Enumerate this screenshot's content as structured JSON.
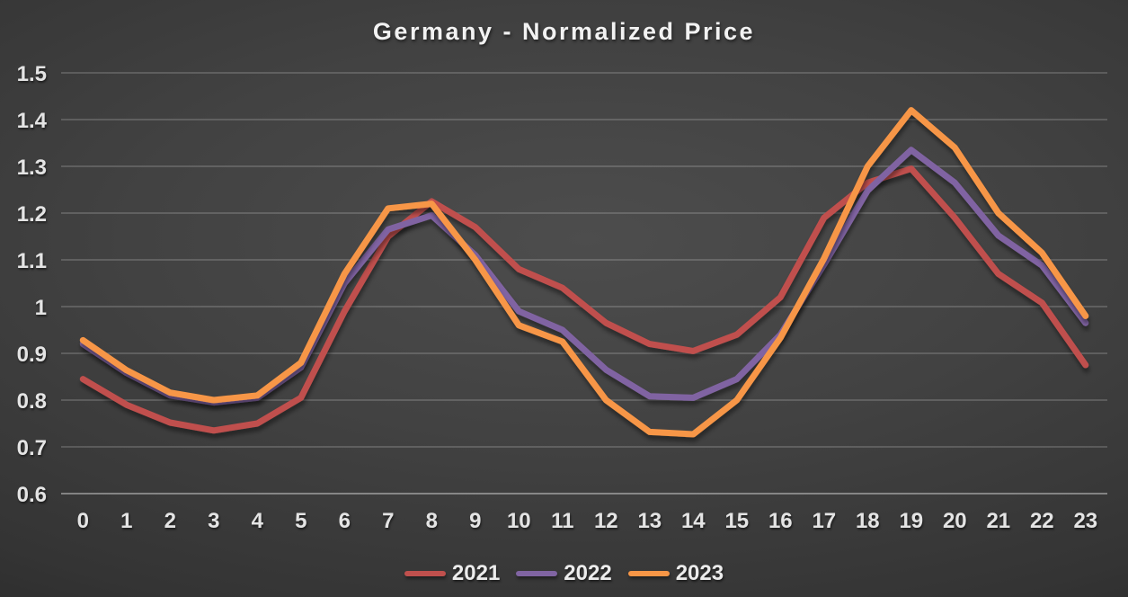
{
  "chart_data": {
    "type": "line",
    "title": "Germany - Normalized Price",
    "xlabel": "",
    "ylabel": "",
    "x": [
      "0",
      "1",
      "2",
      "3",
      "4",
      "5",
      "6",
      "7",
      "8",
      "9",
      "10",
      "11",
      "12",
      "13",
      "14",
      "15",
      "16",
      "17",
      "18",
      "19",
      "20",
      "21",
      "22",
      "23"
    ],
    "ylim": [
      0.6,
      1.5
    ],
    "ytick_labels": [
      "1.5",
      "1.4",
      "1.3",
      "1.2",
      "1.1",
      "1",
      "0.9",
      "0.8",
      "0.7",
      "0.6"
    ],
    "grid": true,
    "legend_position": "bottom",
    "background_color": "#3e3e3e",
    "gridline_color": "#5c5c5c",
    "tick_label_color": "#e4e4e4",
    "title_color": "#f2f2f2",
    "series": [
      {
        "name": "2021",
        "color": "#C0504D",
        "values": [
          0.845,
          0.79,
          0.752,
          0.735,
          0.75,
          0.805,
          0.99,
          1.15,
          1.225,
          1.17,
          1.08,
          1.04,
          0.965,
          0.92,
          0.905,
          0.94,
          1.02,
          1.19,
          1.265,
          1.295,
          1.19,
          1.07,
          1.008,
          0.875
        ]
      },
      {
        "name": "2022",
        "color": "#8064A2",
        "values": [
          0.92,
          0.858,
          0.81,
          0.795,
          0.805,
          0.87,
          1.05,
          1.165,
          1.195,
          1.11,
          0.99,
          0.95,
          0.865,
          0.808,
          0.805,
          0.845,
          0.94,
          1.09,
          1.248,
          1.335,
          1.265,
          1.152,
          1.088,
          0.965
        ]
      },
      {
        "name": "2023",
        "color": "#F79646",
        "values": [
          0.928,
          0.864,
          0.816,
          0.8,
          0.81,
          0.88,
          1.07,
          1.21,
          1.22,
          1.1,
          0.96,
          0.925,
          0.8,
          0.732,
          0.727,
          0.8,
          0.933,
          1.103,
          1.3,
          1.42,
          1.34,
          1.2,
          1.115,
          0.98
        ]
      }
    ]
  }
}
